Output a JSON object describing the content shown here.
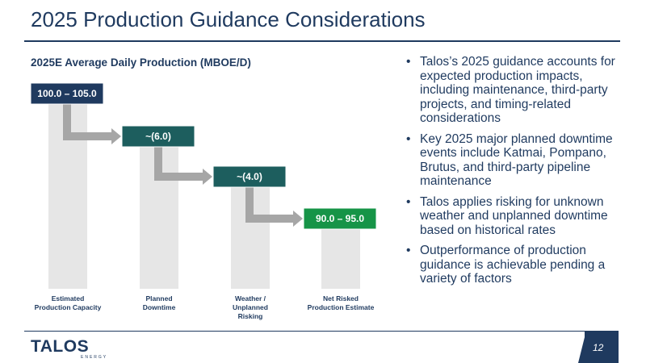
{
  "slide": {
    "title": "2025 Production Guidance Considerations",
    "page_number": "12",
    "logo": "TALOS",
    "logo_sub": "ENERGY"
  },
  "colors": {
    "navy": "#1f3a5f",
    "teal": "#1d5e5e",
    "green": "#169447",
    "bar_gray": "#e6e6e6",
    "arrow_gray": "#a6a6a6"
  },
  "bullets": [
    "Talos’s 2025 guidance accounts for expected production impacts, including maintenance, third-party projects, and timing-related considerations",
    "Key 2025 major planned downtime events include Katmai, Pompano, Brutus, and third-party pipeline maintenance",
    "Talos applies risking for unknown weather and unplanned downtime based on historical rates",
    "Outperformance of production guidance is achievable pending a variety of factors"
  ],
  "chart_data": {
    "type": "bar",
    "subtype": "waterfall",
    "title": "2025E Average Daily Production (MBOE/D)",
    "categories": [
      "Estimated Production Capacity",
      "Planned Downtime",
      "Weather / Unplanned Risking",
      "Net Risked Production Estimate"
    ],
    "category_label_lines": [
      [
        "Estimated",
        "Production Capacity"
      ],
      [
        "Planned",
        "Downtime"
      ],
      [
        "Weather /",
        "Unplanned",
        "Risking"
      ],
      [
        "Net Risked",
        "Production Estimate"
      ]
    ],
    "value_labels": [
      "100.0 – 105.0",
      "~(6.0)",
      "~(4.0)",
      "90.0 – 95.0"
    ],
    "values": [
      102.5,
      -6.0,
      -4.0,
      92.5
    ],
    "ranges": [
      [
        100.0,
        105.0
      ],
      null,
      null,
      [
        90.0,
        95.0
      ]
    ],
    "label_colors": [
      "#1f3a5f",
      "#1d5e5e",
      "#1d5e5e",
      "#169447"
    ]
  }
}
